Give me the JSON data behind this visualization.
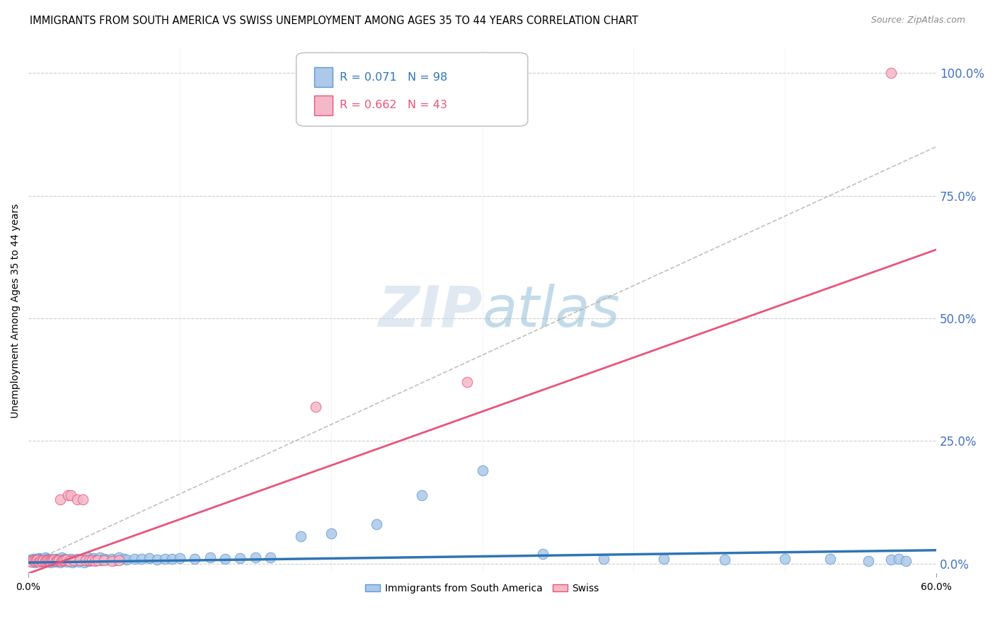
{
  "title": "IMMIGRANTS FROM SOUTH AMERICA VS SWISS UNEMPLOYMENT AMONG AGES 35 TO 44 YEARS CORRELATION CHART",
  "source": "Source: ZipAtlas.com",
  "ylabel": "Unemployment Among Ages 35 to 44 years",
  "xlim": [
    0.0,
    0.6
  ],
  "ylim": [
    -0.02,
    1.05
  ],
  "plot_ylim": [
    0.0,
    1.0
  ],
  "xtick_positions": [
    0.0,
    0.6
  ],
  "xtick_labels": [
    "0.0%",
    "60.0%"
  ],
  "ytick_labels": [
    "100.0%",
    "75.0%",
    "50.0%",
    "25.0%",
    "0.0%"
  ],
  "ytick_positions": [
    1.0,
    0.75,
    0.5,
    0.25,
    0.0
  ],
  "right_ytick_color": "#4472c4",
  "legend1_label": "Immigrants from South America",
  "legend2_label": "Swiss",
  "r_blue": 0.071,
  "n_blue": 98,
  "r_pink": 0.662,
  "n_pink": 43,
  "blue_color": "#adc8e8",
  "blue_edge_color": "#5b9bd5",
  "blue_line_color": "#2e75b6",
  "pink_color": "#f4b8c8",
  "pink_edge_color": "#e8547a",
  "pink_line_color": "#e8547a",
  "gray_dash_color": "#b0b0b0",
  "watermark_color": "#c8d8e8",
  "background_color": "#ffffff",
  "title_fontsize": 10.5,
  "axis_label_fontsize": 10,
  "tick_fontsize": 10,
  "legend_fontsize": 10,
  "blue_regression_slope": 0.042,
  "blue_regression_intercept": 0.002,
  "pink_regression_slope": 1.1,
  "pink_regression_intercept": -0.02,
  "blue_scatter_x": [
    0.001,
    0.001,
    0.002,
    0.002,
    0.003,
    0.003,
    0.004,
    0.004,
    0.005,
    0.005,
    0.006,
    0.006,
    0.007,
    0.007,
    0.008,
    0.008,
    0.009,
    0.009,
    0.01,
    0.01,
    0.01,
    0.011,
    0.011,
    0.012,
    0.012,
    0.013,
    0.013,
    0.014,
    0.015,
    0.015,
    0.016,
    0.017,
    0.018,
    0.018,
    0.019,
    0.02,
    0.02,
    0.021,
    0.022,
    0.022,
    0.023,
    0.024,
    0.025,
    0.026,
    0.027,
    0.028,
    0.029,
    0.03,
    0.031,
    0.032,
    0.033,
    0.034,
    0.035,
    0.036,
    0.037,
    0.038,
    0.039,
    0.04,
    0.042,
    0.043,
    0.045,
    0.047,
    0.048,
    0.05,
    0.052,
    0.055,
    0.057,
    0.06,
    0.063,
    0.065,
    0.07,
    0.075,
    0.08,
    0.085,
    0.09,
    0.095,
    0.1,
    0.11,
    0.12,
    0.13,
    0.14,
    0.15,
    0.16,
    0.18,
    0.2,
    0.23,
    0.26,
    0.3,
    0.34,
    0.38,
    0.42,
    0.46,
    0.5,
    0.53,
    0.555,
    0.57,
    0.575,
    0.58
  ],
  "blue_scatter_y": [
    0.005,
    0.007,
    0.004,
    0.008,
    0.006,
    0.01,
    0.003,
    0.008,
    0.005,
    0.009,
    0.004,
    0.007,
    0.006,
    0.011,
    0.005,
    0.009,
    0.004,
    0.008,
    0.006,
    0.01,
    0.003,
    0.007,
    0.012,
    0.005,
    0.009,
    0.004,
    0.008,
    0.006,
    0.01,
    0.003,
    0.007,
    0.005,
    0.009,
    0.004,
    0.008,
    0.006,
    0.01,
    0.003,
    0.007,
    0.012,
    0.005,
    0.009,
    0.004,
    0.008,
    0.006,
    0.01,
    0.003,
    0.007,
    0.005,
    0.009,
    0.004,
    0.008,
    0.006,
    0.01,
    0.003,
    0.007,
    0.012,
    0.005,
    0.009,
    0.011,
    0.007,
    0.013,
    0.006,
    0.009,
    0.008,
    0.01,
    0.007,
    0.012,
    0.009,
    0.008,
    0.01,
    0.009,
    0.011,
    0.008,
    0.01,
    0.009,
    0.011,
    0.009,
    0.012,
    0.01,
    0.011,
    0.012,
    0.013,
    0.056,
    0.062,
    0.08,
    0.14,
    0.19,
    0.02,
    0.01,
    0.01,
    0.008,
    0.009,
    0.01,
    0.005,
    0.008,
    0.01,
    0.005
  ],
  "pink_scatter_x": [
    0.001,
    0.002,
    0.003,
    0.004,
    0.005,
    0.006,
    0.007,
    0.008,
    0.009,
    0.01,
    0.011,
    0.012,
    0.013,
    0.014,
    0.015,
    0.016,
    0.017,
    0.018,
    0.019,
    0.02,
    0.021,
    0.022,
    0.023,
    0.024,
    0.025,
    0.026,
    0.027,
    0.028,
    0.03,
    0.032,
    0.034,
    0.036,
    0.038,
    0.04,
    0.042,
    0.044,
    0.046,
    0.05,
    0.055,
    0.06,
    0.19,
    0.29,
    0.57
  ],
  "pink_scatter_y": [
    0.005,
    0.004,
    0.007,
    0.005,
    0.006,
    0.008,
    0.004,
    0.007,
    0.005,
    0.006,
    0.005,
    0.007,
    0.006,
    0.005,
    0.007,
    0.006,
    0.008,
    0.005,
    0.007,
    0.006,
    0.13,
    0.005,
    0.007,
    0.006,
    0.008,
    0.14,
    0.005,
    0.14,
    0.007,
    0.13,
    0.006,
    0.13,
    0.007,
    0.006,
    0.007,
    0.005,
    0.006,
    0.007,
    0.005,
    0.006,
    0.32,
    0.37,
    1.0
  ]
}
